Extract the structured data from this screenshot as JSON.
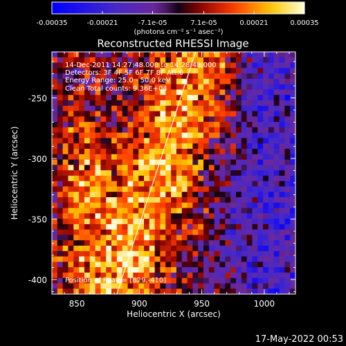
{
  "chart_data": {
    "type": "heatmap",
    "title": "Reconstructed RHESSI Image",
    "xlabel": "Heliocentric X (arcsec)",
    "ylabel": "Heliocentric Y (arcsec)",
    "xlim": [
      830,
      1025
    ],
    "ylim": [
      -412,
      -212
    ],
    "x_ticks": [
      850,
      900,
      950,
      1000
    ],
    "x_tick_labels": [
      "850",
      "900",
      "950",
      "1000"
    ],
    "y_ticks": [
      -250,
      -300,
      -350,
      -400
    ],
    "y_tick_labels": [
      "-250",
      "-300",
      "-350",
      "-400"
    ],
    "grid": false,
    "colorbar": {
      "ticks": [
        -0.00035,
        -0.00021,
        -7.1e-05,
        7.1e-05,
        0.00021,
        0.00035
      ],
      "tick_labels": [
        "-0.00035",
        "-0.00021",
        "-7.1e-05",
        "7.1e-05",
        "0.00021",
        "0.00035"
      ],
      "unit_label": "(photons cm⁻² s⁻¹ asec⁻²)",
      "range": [
        -0.00035,
        0.00035
      ]
    },
    "annotations": [
      "14-Dec-2011 14:27:48.000 to 14:28:48.000",
      "Detectors: 3F 4F 5F 6F 7F 8F  Att:0",
      "Energy Range: 25.0 - 50.0 keV",
      "Clean    Total counts: 9.36E+04",
      "Position of Peak = [829,-410]"
    ],
    "limb_line": {
      "x": [
        882,
        945
      ],
      "y": [
        -412,
        -212
      ]
    }
  },
  "footer": {
    "timestamp": "17-May-2022 00:53"
  },
  "colors": {
    "background": "#000000",
    "text": "#ffffff",
    "axis": "#ffffff"
  }
}
